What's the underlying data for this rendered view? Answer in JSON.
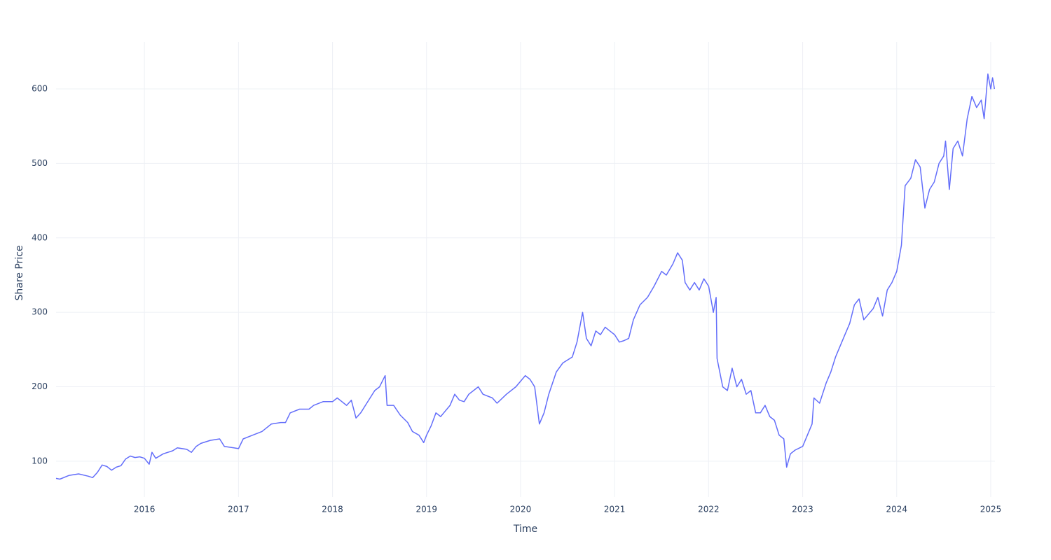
{
  "chart_data": {
    "type": "line",
    "x_label": "Time",
    "y_label": "Share Price",
    "x": [
      2015.06,
      2015.1,
      2015.2,
      2015.3,
      2015.4,
      2015.45,
      2015.5,
      2015.55,
      2015.6,
      2015.65,
      2015.7,
      2015.75,
      2015.8,
      2015.85,
      2015.9,
      2015.95,
      2016.0,
      2016.05,
      2016.08,
      2016.12,
      2016.2,
      2016.3,
      2016.35,
      2016.45,
      2016.5,
      2016.55,
      2016.6,
      2016.7,
      2016.8,
      2016.85,
      2016.95,
      2017.0,
      2017.05,
      2017.15,
      2017.25,
      2017.35,
      2017.45,
      2017.5,
      2017.55,
      2017.65,
      2017.75,
      2017.8,
      2017.9,
      2018.0,
      2018.05,
      2018.1,
      2018.15,
      2018.2,
      2018.25,
      2018.3,
      2018.35,
      2018.4,
      2018.45,
      2018.5,
      2018.56,
      2018.58,
      2018.65,
      2018.72,
      2018.8,
      2018.85,
      2018.92,
      2018.97,
      2019.0,
      2019.05,
      2019.1,
      2019.15,
      2019.25,
      2019.3,
      2019.35,
      2019.4,
      2019.45,
      2019.55,
      2019.6,
      2019.7,
      2019.75,
      2019.85,
      2019.95,
      2020.05,
      2020.1,
      2020.15,
      2020.2,
      2020.25,
      2020.3,
      2020.38,
      2020.45,
      2020.55,
      2020.6,
      2020.66,
      2020.7,
      2020.75,
      2020.8,
      2020.85,
      2020.9,
      2020.95,
      2021.0,
      2021.05,
      2021.1,
      2021.15,
      2021.2,
      2021.27,
      2021.35,
      2021.42,
      2021.5,
      2021.55,
      2021.62,
      2021.67,
      2021.72,
      2021.75,
      2021.8,
      2021.85,
      2021.9,
      2021.95,
      2022.0,
      2022.05,
      2022.08,
      2022.09,
      2022.15,
      2022.2,
      2022.25,
      2022.3,
      2022.35,
      2022.4,
      2022.45,
      2022.5,
      2022.55,
      2022.6,
      2022.65,
      2022.7,
      2022.75,
      2022.8,
      2022.83,
      2022.87,
      2022.92,
      2023.0,
      2023.05,
      2023.1,
      2023.12,
      2023.18,
      2023.25,
      2023.3,
      2023.35,
      2023.45,
      2023.5,
      2023.55,
      2023.6,
      2023.65,
      2023.75,
      2023.8,
      2023.85,
      2023.9,
      2023.95,
      2024.0,
      2024.05,
      2024.09,
      2024.15,
      2024.2,
      2024.25,
      2024.3,
      2024.35,
      2024.4,
      2024.45,
      2024.5,
      2024.52,
      2024.56,
      2024.6,
      2024.65,
      2024.7,
      2024.75,
      2024.8,
      2024.85,
      2024.9,
      2024.93,
      2024.97,
      2025.0,
      2025.02,
      2025.04
    ],
    "series": [
      {
        "name": "Share Price",
        "color": "#636efa",
        "values": [
          77,
          76,
          81,
          83,
          80,
          78,
          85,
          95,
          93,
          88,
          92,
          94,
          103,
          107,
          105,
          106,
          104,
          96,
          112,
          104,
          110,
          114,
          118,
          116,
          112,
          120,
          124,
          128,
          130,
          120,
          118,
          117,
          130,
          135,
          140,
          150,
          152,
          152,
          165,
          170,
          170,
          175,
          180,
          180,
          185,
          180,
          175,
          182,
          158,
          165,
          175,
          185,
          195,
          200,
          215,
          175,
          175,
          162,
          152,
          140,
          135,
          125,
          135,
          148,
          165,
          160,
          175,
          190,
          182,
          180,
          190,
          200,
          190,
          185,
          178,
          190,
          200,
          215,
          210,
          200,
          150,
          165,
          190,
          220,
          232,
          240,
          260,
          300,
          265,
          255,
          275,
          270,
          280,
          275,
          270,
          260,
          262,
          265,
          290,
          310,
          320,
          335,
          355,
          350,
          365,
          380,
          370,
          340,
          330,
          340,
          330,
          345,
          335,
          300,
          320,
          238,
          200,
          195,
          225,
          200,
          210,
          190,
          195,
          165,
          165,
          175,
          160,
          155,
          135,
          130,
          92,
          110,
          115,
          120,
          135,
          150,
          185,
          178,
          205,
          220,
          240,
          270,
          285,
          310,
          318,
          290,
          305,
          320,
          295,
          330,
          340,
          355,
          390,
          470,
          480,
          505,
          495,
          440,
          465,
          475,
          500,
          510,
          530,
          465,
          520,
          530,
          510,
          560,
          590,
          575,
          585,
          560,
          620,
          600,
          615,
          600
        ]
      }
    ],
    "xlim": [
      2015.06,
      2025.045
    ],
    "xticks": [
      2016,
      2017,
      2018,
      2019,
      2020,
      2021,
      2022,
      2023,
      2024,
      2025
    ],
    "ylim": [
      52,
      663
    ],
    "yticks": [
      100,
      200,
      300,
      400,
      500,
      600
    ],
    "grid": true
  }
}
